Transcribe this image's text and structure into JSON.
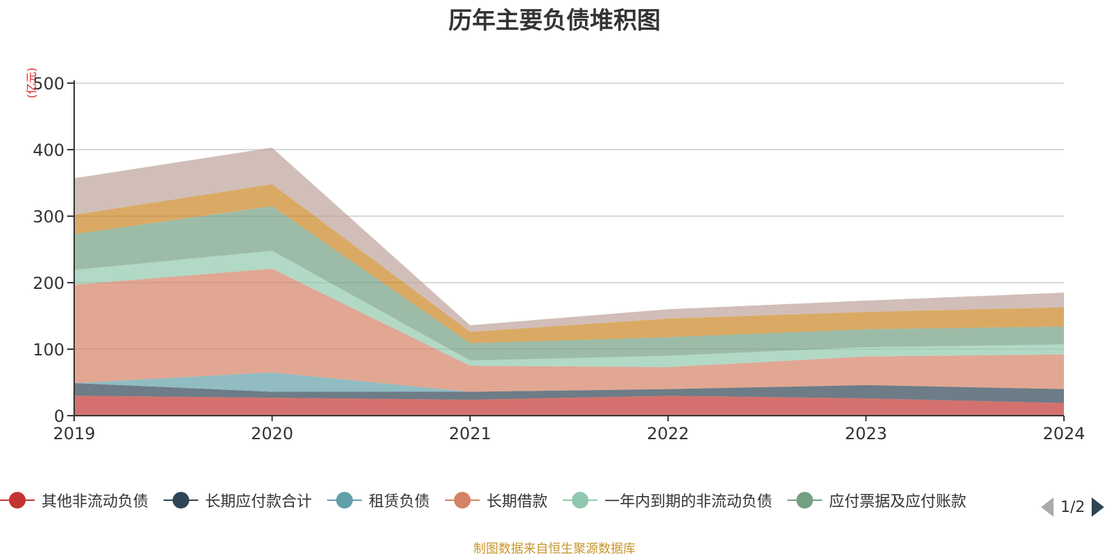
{
  "chart_data": {
    "type": "area",
    "title": "历年主要负债堆积图",
    "ylabel": "(亿元)",
    "xlabel": "",
    "x": [
      "2019",
      "2020",
      "2021",
      "2022",
      "2023",
      "2024"
    ],
    "ylim": [
      0,
      500
    ],
    "yticks": [
      "0",
      "100",
      "200",
      "300",
      "400",
      "500"
    ],
    "stacked": true,
    "grid": true,
    "series": [
      {
        "name": "其他非流动负债",
        "color": "#c23531",
        "values": [
          30,
          27,
          24,
          30,
          26,
          19
        ]
      },
      {
        "name": "长期应付款合计",
        "color": "#2f4554",
        "values": [
          19,
          9,
          12,
          10,
          20,
          21
        ]
      },
      {
        "name": "租赁负债",
        "color": "#61a0a8",
        "values": [
          0,
          29,
          0,
          0,
          0,
          0
        ]
      },
      {
        "name": "长期借款",
        "color": "#d48265",
        "values": [
          148,
          156,
          39,
          33,
          43,
          52
        ]
      },
      {
        "name": "一年内到期的非流动负债",
        "color": "#91c7ae",
        "values": [
          22,
          27,
          8,
          17,
          14,
          15
        ]
      },
      {
        "name": "应付票据及应付账款",
        "color": "#749f83",
        "values": [
          54,
          67,
          26,
          28,
          27,
          27
        ]
      },
      {
        "color": "#ca8622",
        "values": [
          29,
          33,
          17,
          28,
          26,
          29
        ]
      },
      {
        "color": "#bda29a",
        "values": [
          55,
          55,
          10,
          14,
          17,
          22
        ]
      }
    ],
    "legend": {
      "position": "bottom",
      "page": "1/2"
    },
    "source_note": "制图数据来自恒生聚源数据库"
  }
}
